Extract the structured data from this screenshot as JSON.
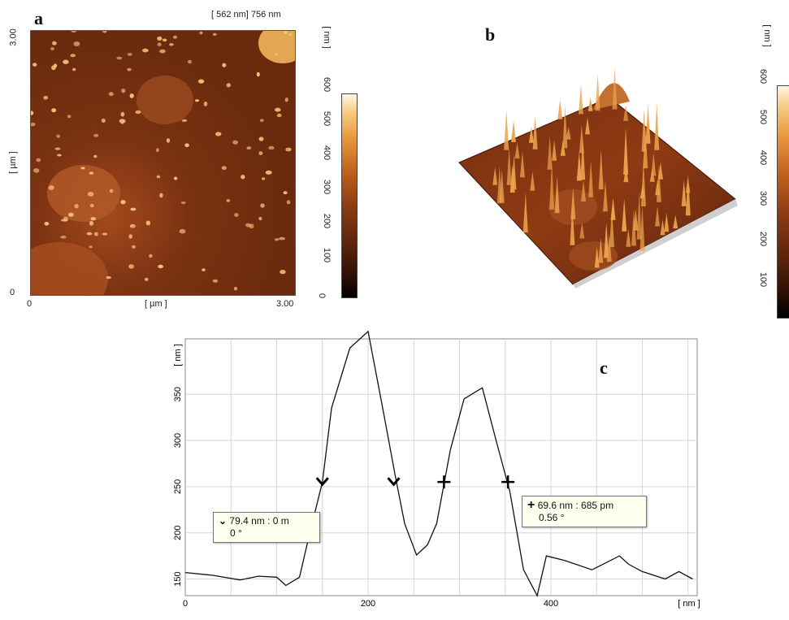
{
  "panel_a": {
    "letter": "a",
    "header": "[ 562 nm] 756 nm",
    "y_axis_label": "[ µm ]",
    "x_axis_label": "[ µm ]",
    "y_ticks": [
      "3.00",
      "0"
    ],
    "x_ticks": [
      "0",
      "3.00"
    ],
    "scale_label": "[ nm ]",
    "scale_ticks": [
      "600",
      "500",
      "400",
      "300",
      "200",
      "100",
      "0"
    ]
  },
  "panel_b": {
    "letter": "b",
    "scale_label": "[ nm ]",
    "scale_ticks": [
      "600",
      "500",
      "400",
      "300",
      "200",
      "100"
    ]
  },
  "chart_data": {
    "type": "line",
    "panel_letter": "c",
    "xlabel": "[ nm ]",
    "ylabel": "[ nm ]",
    "xlim": [
      0,
      560
    ],
    "ylim": [
      132,
      410
    ],
    "x_ticks": [
      0,
      200,
      400
    ],
    "y_ticks": [
      150,
      200,
      250,
      300,
      350
    ],
    "grid": true,
    "series": [
      {
        "x": [
          0,
          30,
          60,
          80,
          100,
          110,
          125,
          135,
          150,
          160,
          180,
          200,
          215,
          230,
          240,
          253,
          265,
          275,
          290,
          305,
          325,
          340,
          355,
          370,
          385,
          395,
          415,
          445,
          475,
          485,
          500,
          525,
          540,
          555
        ],
        "y": [
          157,
          154,
          149,
          153,
          152,
          143,
          152,
          195,
          255,
          335,
          400,
          418,
          340,
          260,
          210,
          176,
          187,
          210,
          290,
          345,
          357,
          300,
          245,
          160,
          132,
          175,
          170,
          160,
          175,
          166,
          158,
          150,
          158,
          150
        ]
      }
    ],
    "markers": [
      {
        "shape": "v",
        "x": 150,
        "y": 255
      },
      {
        "shape": "v",
        "x": 228,
        "y": 255
      },
      {
        "shape": "+",
        "x": 283,
        "y": 255
      },
      {
        "shape": "+",
        "x": 353,
        "y": 255
      }
    ],
    "annotations": [
      {
        "line1": "79.4 nm : 0 m",
        "line2": "0 °"
      },
      {
        "line1": "69.6 nm : 685 pm",
        "line2": "0.56 °"
      }
    ]
  }
}
